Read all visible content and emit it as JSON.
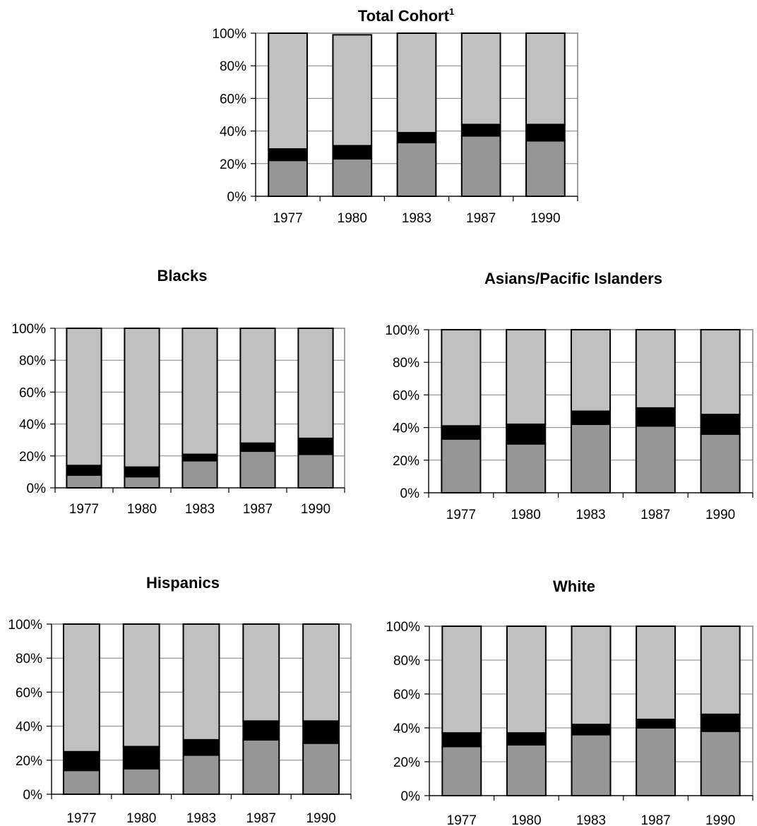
{
  "colors": {
    "bottom": "#969696",
    "middle": "#000000",
    "top": "#c0c0c0"
  },
  "chart_data": [
    {
      "type": "bar",
      "stacked": true,
      "title": "Total Cohort",
      "title_superscript": "1",
      "categories": [
        "1977",
        "1980",
        "1983",
        "1987",
        "1990"
      ],
      "yticks": [
        "0%",
        "20%",
        "40%",
        "60%",
        "80%",
        "100%"
      ],
      "ylim": [
        0,
        100
      ],
      "series": [
        {
          "values": [
            22,
            23,
            33,
            37,
            34
          ]
        },
        {
          "values": [
            7,
            8,
            6,
            7,
            10
          ]
        },
        {
          "values": [
            71,
            68,
            61,
            56,
            56
          ]
        }
      ]
    },
    {
      "type": "bar",
      "stacked": true,
      "title": "Blacks",
      "categories": [
        "1977",
        "1980",
        "1983",
        "1987",
        "1990"
      ],
      "yticks": [
        "0%",
        "20%",
        "40%",
        "60%",
        "80%",
        "100%"
      ],
      "ylim": [
        0,
        100
      ],
      "series": [
        {
          "values": [
            8,
            7,
            17,
            23,
            21
          ]
        },
        {
          "values": [
            6,
            6,
            4,
            5,
            10
          ]
        },
        {
          "values": [
            86,
            87,
            79,
            72,
            69
          ]
        }
      ]
    },
    {
      "type": "bar",
      "stacked": true,
      "title": "Asians/Pacific Islanders",
      "categories": [
        "1977",
        "1980",
        "1983",
        "1987",
        "1990"
      ],
      "yticks": [
        "0%",
        "20%",
        "40%",
        "60%",
        "80%",
        "100%"
      ],
      "ylim": [
        0,
        100
      ],
      "series": [
        {
          "values": [
            33,
            30,
            42,
            41,
            36
          ]
        },
        {
          "values": [
            8,
            12,
            8,
            11,
            12
          ]
        },
        {
          "values": [
            59,
            58,
            50,
            48,
            52
          ]
        }
      ]
    },
    {
      "type": "bar",
      "stacked": true,
      "title": "Hispanics",
      "categories": [
        "1977",
        "1980",
        "1983",
        "1987",
        "1990"
      ],
      "yticks": [
        "0%",
        "20%",
        "40%",
        "60%",
        "80%",
        "100%"
      ],
      "ylim": [
        0,
        100
      ],
      "series": [
        {
          "values": [
            14,
            15,
            23,
            32,
            30
          ]
        },
        {
          "values": [
            11,
            13,
            9,
            11,
            13
          ]
        },
        {
          "values": [
            75,
            72,
            68,
            57,
            57
          ]
        }
      ]
    },
    {
      "type": "bar",
      "stacked": true,
      "title": "White",
      "categories": [
        "1977",
        "1980",
        "1983",
        "1987",
        "1990"
      ],
      "yticks": [
        "0%",
        "20%",
        "40%",
        "60%",
        "80%",
        "100%"
      ],
      "ylim": [
        0,
        100
      ],
      "series": [
        {
          "values": [
            29,
            30,
            36,
            40,
            38
          ]
        },
        {
          "values": [
            8,
            7,
            6,
            5,
            10
          ]
        },
        {
          "values": [
            63,
            63,
            58,
            55,
            52
          ]
        }
      ]
    }
  ]
}
